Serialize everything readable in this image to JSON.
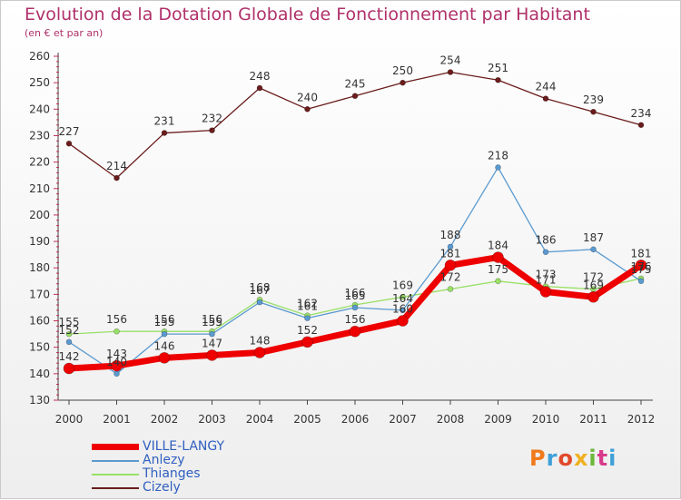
{
  "title": "Evolution de la Dotation Globale de Fonctionnement par Habitant",
  "subtitle": "(en € et par an)",
  "brand": {
    "text": "Proxiti",
    "colors": [
      "#f07a1a",
      "#3fa0d8",
      "#e04a2a",
      "#f0b020",
      "#6cb83a",
      "#d83a8a",
      "#3fa0d8"
    ]
  },
  "chart_data": {
    "type": "line",
    "title": "Evolution de la Dotation Globale de Fonctionnement par Habitant",
    "subtitle": "(en € et par an)",
    "x": [
      "2000",
      "2001",
      "2002",
      "2003",
      "2004",
      "2005",
      "2006",
      "2007",
      "2008",
      "2009",
      "2010",
      "2011",
      "2012"
    ],
    "ylim": [
      130,
      260
    ],
    "yticks": [
      130,
      140,
      150,
      160,
      170,
      180,
      190,
      200,
      210,
      220,
      230,
      240,
      250,
      260
    ],
    "grid": false,
    "legend_position": "bottom-left",
    "series": [
      {
        "name": "Cizely",
        "color": "#6b1c1c",
        "values": [
          227,
          214,
          231,
          232,
          248,
          240,
          245,
          250,
          254,
          251,
          244,
          239,
          234
        ]
      },
      {
        "name": "Thianges",
        "color": "#99e066",
        "values": [
          155,
          156,
          156,
          156,
          168,
          162,
          166,
          169,
          172,
          175,
          173,
          172,
          176
        ]
      },
      {
        "name": "Anlezy",
        "color": "#5a9ad0",
        "values": [
          152,
          140,
          155,
          155,
          167,
          161,
          165,
          164,
          188,
          218,
          186,
          187,
          175
        ]
      },
      {
        "name": "VILLE-LANGY",
        "color": "#ee0000",
        "values": [
          142,
          143,
          146,
          147,
          148,
          152,
          156,
          160,
          181,
          184,
          171,
          169,
          181
        ]
      }
    ],
    "legend_order": [
      "VILLE-LANGY",
      "Anlezy",
      "Thianges",
      "Cizely"
    ]
  }
}
